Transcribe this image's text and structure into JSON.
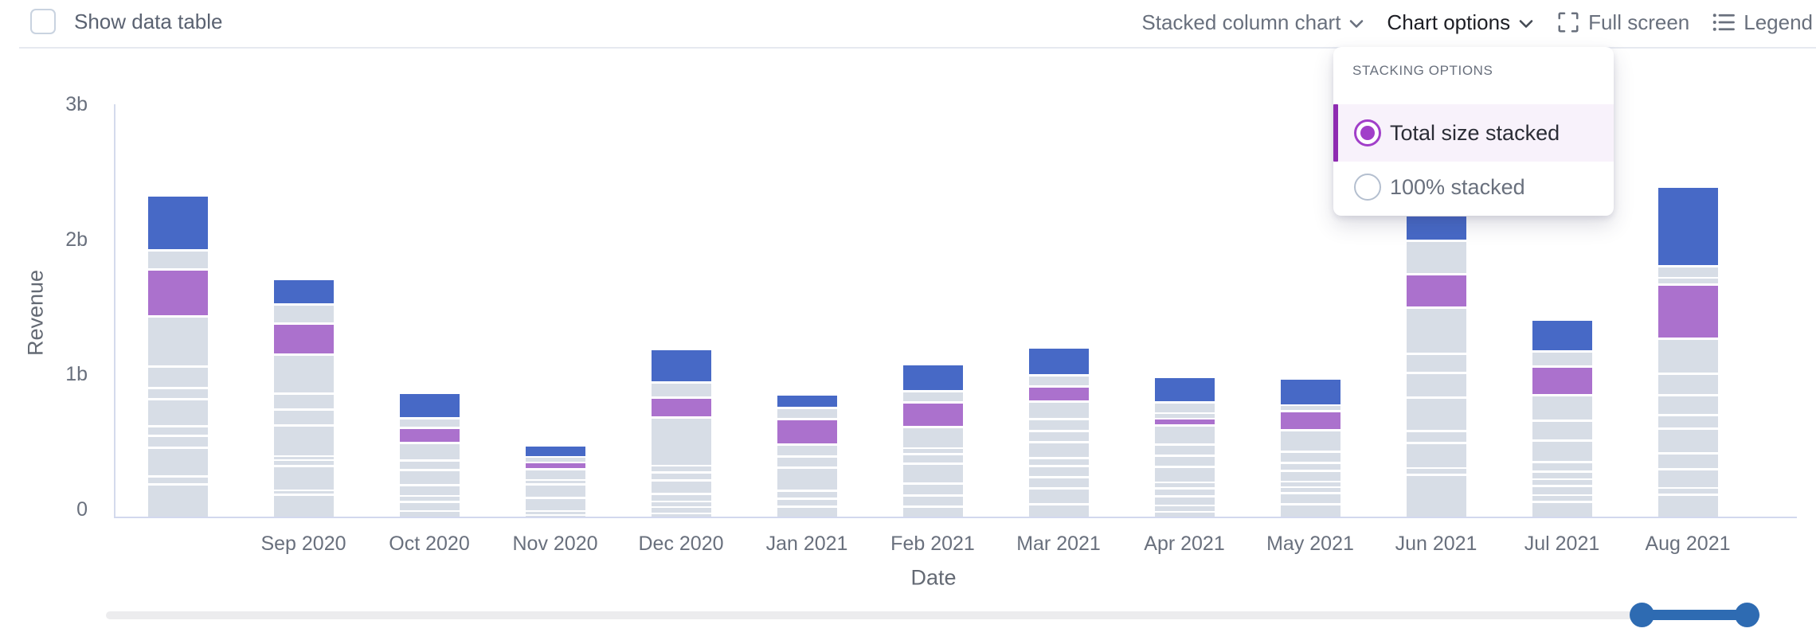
{
  "topbar": {
    "show_data_table_label": "Show data table",
    "chart_type_label": "Stacked column chart",
    "chart_options_label": "Chart options",
    "full_screen_label": "Full screen",
    "legend_label": "Legend"
  },
  "stacking_menu": {
    "title": "STACKING OPTIONS",
    "options": [
      {
        "label": "Total size stacked",
        "selected": true
      },
      {
        "label": "100% stacked",
        "selected": false
      }
    ]
  },
  "chart_data": {
    "type": "bar",
    "stacked": true,
    "xlabel": "Date",
    "ylabel": "Revenue",
    "unit": "billions",
    "ylim": [
      0,
      3
    ],
    "y_ticks": [
      {
        "value": 0,
        "label": "0"
      },
      {
        "value": 1,
        "label": "1b"
      },
      {
        "value": 2,
        "label": "2b"
      },
      {
        "value": 3,
        "label": "3b"
      }
    ],
    "categories": [
      "",
      "Sep 2020",
      "Oct 2020",
      "Nov 2020",
      "Dec 2020",
      "Jan 2021",
      "Feb 2021",
      "Mar 2021",
      "Apr 2021",
      "May 2021",
      "Jun 2021",
      "Jul 2021",
      "Aug 2021"
    ],
    "segment_colors": {
      "blue": "#4769c6",
      "purple": "#ab71cd",
      "gray": "#d7dde6"
    },
    "bars": [
      {
        "label": "",
        "total": 2.37,
        "segments_top_to_bottom": [
          {
            "color": "blue",
            "value": 0.39
          },
          {
            "color": "gray",
            "value": 0.14
          },
          {
            "color": "purple",
            "value": 0.35
          },
          {
            "color": "gray",
            "value": 0.37
          },
          {
            "color": "gray",
            "value": 0.16
          },
          {
            "color": "gray",
            "value": 0.08
          },
          {
            "color": "gray",
            "value": 0.2
          },
          {
            "color": "gray",
            "value": 0.07
          },
          {
            "color": "gray",
            "value": 0.09
          },
          {
            "color": "gray",
            "value": 0.21
          },
          {
            "color": "gray",
            "value": 0.06
          },
          {
            "color": "gray",
            "value": 0.25
          }
        ]
      },
      {
        "label": "Sep 2020",
        "total": 1.75,
        "segments_top_to_bottom": [
          {
            "color": "blue",
            "value": 0.17
          },
          {
            "color": "gray",
            "value": 0.14
          },
          {
            "color": "purple",
            "value": 0.23
          },
          {
            "color": "gray",
            "value": 0.29
          },
          {
            "color": "gray",
            "value": 0.12
          },
          {
            "color": "gray",
            "value": 0.12
          },
          {
            "color": "gray",
            "value": 0.23
          },
          {
            "color": "gray",
            "value": 0.03
          },
          {
            "color": "gray",
            "value": 0.04
          },
          {
            "color": "gray",
            "value": 0.18
          },
          {
            "color": "gray",
            "value": 0.03
          },
          {
            "color": "gray",
            "value": 0.17
          }
        ]
      },
      {
        "label": "Oct 2020",
        "total": 0.9,
        "segments_top_to_bottom": [
          {
            "color": "blue",
            "value": 0.17
          },
          {
            "color": "gray",
            "value": 0.07
          },
          {
            "color": "purple",
            "value": 0.11
          },
          {
            "color": "gray",
            "value": 0.13
          },
          {
            "color": "gray",
            "value": 0.07
          },
          {
            "color": "gray",
            "value": 0.11
          },
          {
            "color": "gray",
            "value": 0.08
          },
          {
            "color": "gray",
            "value": 0.04
          },
          {
            "color": "gray",
            "value": 0.07
          },
          {
            "color": "gray",
            "value": 0.05
          }
        ]
      },
      {
        "label": "Nov 2020",
        "total": 0.52,
        "segments_top_to_bottom": [
          {
            "color": "blue",
            "value": 0.07
          },
          {
            "color": "gray",
            "value": 0.04
          },
          {
            "color": "purple",
            "value": 0.05
          },
          {
            "color": "gray",
            "value": 0.08
          },
          {
            "color": "gray",
            "value": 0.03
          },
          {
            "color": "gray",
            "value": 0.1
          },
          {
            "color": "gray",
            "value": 0.1
          },
          {
            "color": "gray",
            "value": 0.03
          },
          {
            "color": "gray",
            "value": 0.02
          }
        ]
      },
      {
        "label": "Dec 2020",
        "total": 1.24,
        "segments_top_to_bottom": [
          {
            "color": "blue",
            "value": 0.23
          },
          {
            "color": "gray",
            "value": 0.11
          },
          {
            "color": "purple",
            "value": 0.15
          },
          {
            "color": "gray",
            "value": 0.36
          },
          {
            "color": "gray",
            "value": 0.05
          },
          {
            "color": "gray",
            "value": 0.06
          },
          {
            "color": "gray",
            "value": 0.1
          },
          {
            "color": "gray",
            "value": 0.06
          },
          {
            "color": "gray",
            "value": 0.04
          },
          {
            "color": "gray",
            "value": 0.05
          },
          {
            "color": "gray",
            "value": 0.03
          }
        ]
      },
      {
        "label": "Jan 2021",
        "total": 0.89,
        "segments_top_to_bottom": [
          {
            "color": "blue",
            "value": 0.08
          },
          {
            "color": "gray",
            "value": 0.08
          },
          {
            "color": "purple",
            "value": 0.19
          },
          {
            "color": "gray",
            "value": 0.09
          },
          {
            "color": "gray",
            "value": 0.08
          },
          {
            "color": "gray",
            "value": 0.17
          },
          {
            "color": "gray",
            "value": 0.06
          },
          {
            "color": "gray",
            "value": 0.06
          },
          {
            "color": "gray",
            "value": 0.08
          }
        ]
      },
      {
        "label": "Feb 2021",
        "total": 1.11,
        "segments_top_to_bottom": [
          {
            "color": "blue",
            "value": 0.18
          },
          {
            "color": "gray",
            "value": 0.08
          },
          {
            "color": "purple",
            "value": 0.18
          },
          {
            "color": "gray",
            "value": 0.16
          },
          {
            "color": "gray",
            "value": 0.04
          },
          {
            "color": "gray",
            "value": 0.07
          },
          {
            "color": "gray",
            "value": 0.15
          },
          {
            "color": "gray",
            "value": 0.09
          },
          {
            "color": "gray",
            "value": 0.08
          },
          {
            "color": "gray",
            "value": 0.08
          }
        ]
      },
      {
        "label": "Mar 2021",
        "total": 1.24,
        "segments_top_to_bottom": [
          {
            "color": "blue",
            "value": 0.19
          },
          {
            "color": "gray",
            "value": 0.08
          },
          {
            "color": "purple",
            "value": 0.11
          },
          {
            "color": "gray",
            "value": 0.13
          },
          {
            "color": "gray",
            "value": 0.09
          },
          {
            "color": "gray",
            "value": 0.08
          },
          {
            "color": "gray",
            "value": 0.12
          },
          {
            "color": "gray",
            "value": 0.06
          },
          {
            "color": "gray",
            "value": 0.08
          },
          {
            "color": "gray",
            "value": 0.08
          },
          {
            "color": "gray",
            "value": 0.12
          },
          {
            "color": "gray",
            "value": 0.1
          }
        ]
      },
      {
        "label": "Apr 2021",
        "total": 1.02,
        "segments_top_to_bottom": [
          {
            "color": "blue",
            "value": 0.17
          },
          {
            "color": "gray",
            "value": 0.08
          },
          {
            "color": "gray",
            "value": 0.04
          },
          {
            "color": "purple",
            "value": 0.05
          },
          {
            "color": "gray",
            "value": 0.14
          },
          {
            "color": "gray",
            "value": 0.08
          },
          {
            "color": "gray",
            "value": 0.08
          },
          {
            "color": "gray",
            "value": 0.12
          },
          {
            "color": "gray",
            "value": 0.04
          },
          {
            "color": "gray",
            "value": 0.06
          },
          {
            "color": "gray",
            "value": 0.07
          },
          {
            "color": "gray",
            "value": 0.05
          },
          {
            "color": "gray",
            "value": 0.04
          }
        ]
      },
      {
        "label": "May 2021",
        "total": 1.0,
        "segments_top_to_bottom": [
          {
            "color": "blue",
            "value": 0.18
          },
          {
            "color": "gray",
            "value": 0.04
          },
          {
            "color": "purple",
            "value": 0.14
          },
          {
            "color": "gray",
            "value": 0.16
          },
          {
            "color": "gray",
            "value": 0.08
          },
          {
            "color": "gray",
            "value": 0.06
          },
          {
            "color": "gray",
            "value": 0.08
          },
          {
            "color": "gray",
            "value": 0.04
          },
          {
            "color": "gray",
            "value": 0.04
          },
          {
            "color": "gray",
            "value": 0.08
          },
          {
            "color": "gray",
            "value": 0.1
          }
        ]
      },
      {
        "label": "Jun 2021",
        "total": 2.23,
        "segments_top_to_bottom": [
          {
            "color": "blue",
            "value": 0.17
          },
          {
            "color": "gray",
            "value": 0.25
          },
          {
            "color": "purple",
            "value": 0.25
          },
          {
            "color": "gray",
            "value": 0.34
          },
          {
            "color": "gray",
            "value": 0.14
          },
          {
            "color": "gray",
            "value": 0.18
          },
          {
            "color": "gray",
            "value": 0.25
          },
          {
            "color": "gray",
            "value": 0.09
          },
          {
            "color": "gray",
            "value": 0.19
          },
          {
            "color": "gray",
            "value": 0.05
          },
          {
            "color": "gray",
            "value": 0.32
          }
        ]
      },
      {
        "label": "Jul 2021",
        "total": 1.46,
        "segments_top_to_bottom": [
          {
            "color": "blue",
            "value": 0.22
          },
          {
            "color": "gray",
            "value": 0.11
          },
          {
            "color": "purple",
            "value": 0.21
          },
          {
            "color": "gray",
            "value": 0.19
          },
          {
            "color": "gray",
            "value": 0.15
          },
          {
            "color": "gray",
            "value": 0.16
          },
          {
            "color": "gray",
            "value": 0.07
          },
          {
            "color": "gray",
            "value": 0.06
          },
          {
            "color": "gray",
            "value": 0.05
          },
          {
            "color": "gray",
            "value": 0.07
          },
          {
            "color": "gray",
            "value": 0.05
          },
          {
            "color": "gray",
            "value": 0.12
          }
        ]
      },
      {
        "label": "Aug 2021",
        "total": 2.44,
        "segments_top_to_bottom": [
          {
            "color": "blue",
            "value": 0.57
          },
          {
            "color": "gray",
            "value": 0.09
          },
          {
            "color": "gray",
            "value": 0.05
          },
          {
            "color": "purple",
            "value": 0.4
          },
          {
            "color": "gray",
            "value": 0.26
          },
          {
            "color": "gray",
            "value": 0.16
          },
          {
            "color": "gray",
            "value": 0.15
          },
          {
            "color": "gray",
            "value": 0.1
          },
          {
            "color": "gray",
            "value": 0.18
          },
          {
            "color": "gray",
            "value": 0.12
          },
          {
            "color": "gray",
            "value": 0.14
          },
          {
            "color": "gray",
            "value": 0.05
          },
          {
            "color": "gray",
            "value": 0.17
          }
        ]
      }
    ]
  }
}
